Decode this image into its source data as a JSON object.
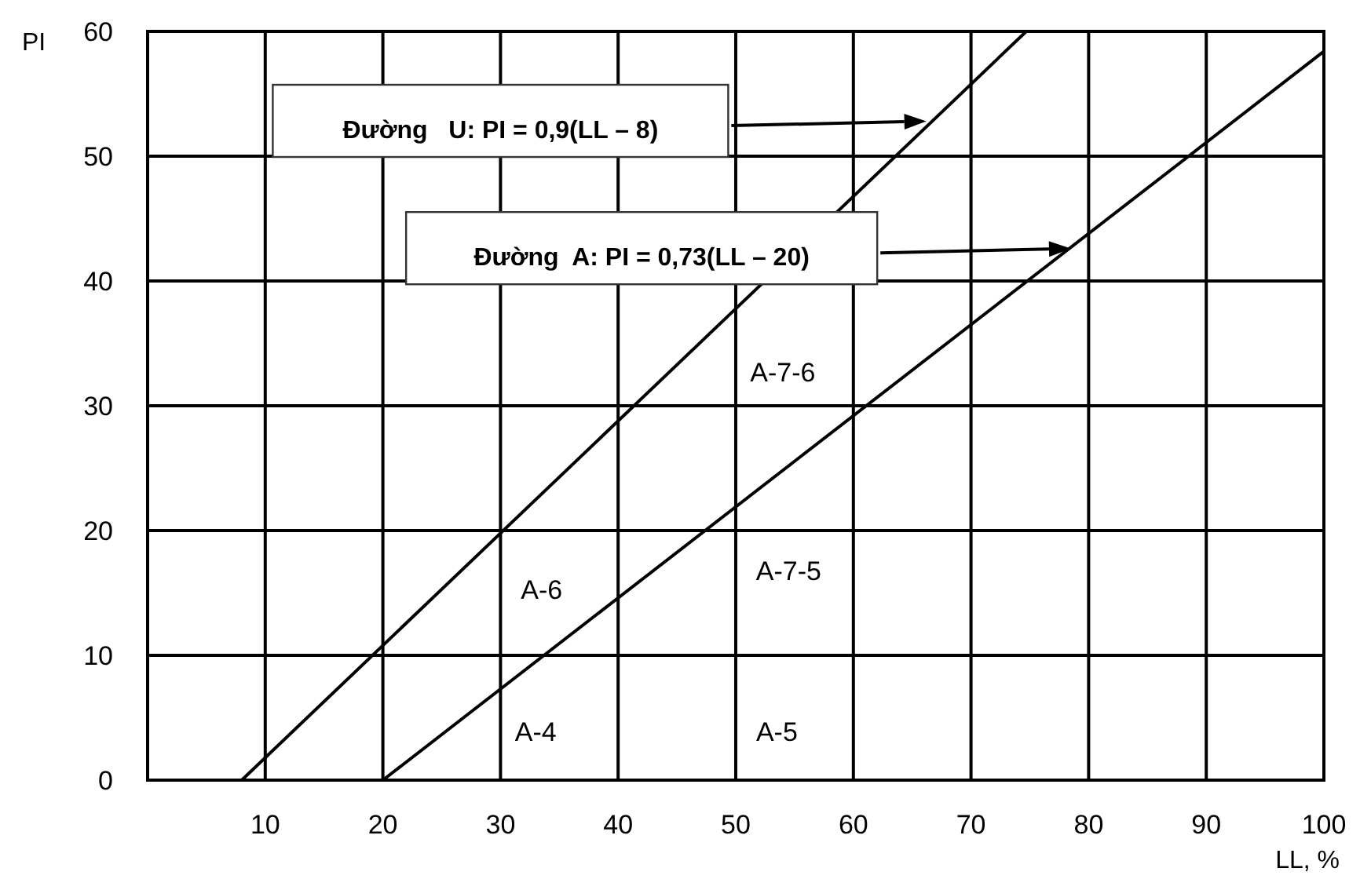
{
  "chart_data": {
    "type": "line",
    "xlabel": "LL, %",
    "ylabel": "PI",
    "xlim": [
      0,
      100
    ],
    "ylim": [
      0,
      60
    ],
    "xticks": [
      10,
      20,
      30,
      40,
      50,
      60,
      70,
      80,
      90,
      100
    ],
    "yticks": [
      0,
      10,
      20,
      30,
      40,
      50,
      60
    ],
    "grid": true,
    "marker": "none",
    "line_style": "solid",
    "series": [
      {
        "color": "#000000",
        "x": [
          8,
          74.7
        ],
        "values": [
          0,
          60
        ]
      },
      {
        "color": "#000000",
        "x": [
          20,
          100
        ],
        "values": [
          0,
          58.4
        ]
      }
    ],
    "annotations": [
      "Đường   U: PI = 0,9(LL – 8)",
      "Đường  A: PI = 0,73(LL – 20)",
      "A-7-6",
      "A-6",
      "A-7-5",
      "A-4",
      "A-5"
    ]
  }
}
